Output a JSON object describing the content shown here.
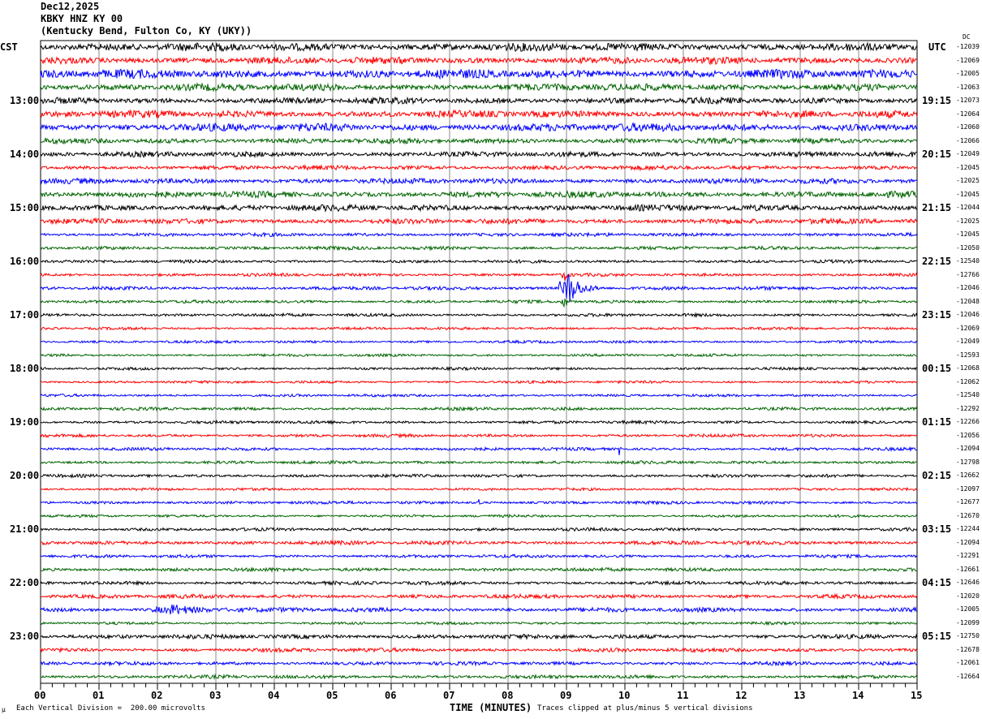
{
  "chart_data": {
    "type": "line",
    "title": {
      "date": "Dec12,2025",
      "station": "KBKY HNZ KY 00",
      "location": "(Kentucky Bend, Fulton Co, KY (UKY))"
    },
    "left_timezone": "CST",
    "right_timezone": "UTC",
    "dc_label": "DC",
    "xlabel": "TIME (MINUTES)",
    "xlim": [
      0,
      15
    ],
    "x_ticks": [
      "00",
      "01",
      "02",
      "03",
      "04",
      "05",
      "06",
      "07",
      "08",
      "09",
      "10",
      "11",
      "12",
      "13",
      "14",
      "15"
    ],
    "scale_note": "Each Vertical Division =  200.00 microvolts",
    "clip_note": "Traces clipped at plus/minus 5 vertical divisions",
    "corner_mark": "µ",
    "trace_colors": [
      "#000000",
      "#ff0000",
      "#0000ff",
      "#006400"
    ],
    "left_labels": [
      {
        "trace": 0,
        "text": "CST"
      },
      {
        "trace": 4,
        "text": "13:00"
      },
      {
        "trace": 8,
        "text": "14:00"
      },
      {
        "trace": 12,
        "text": "15:00"
      },
      {
        "trace": 16,
        "text": "16:00"
      },
      {
        "trace": 20,
        "text": "17:00"
      },
      {
        "trace": 24,
        "text": "18:00"
      },
      {
        "trace": 28,
        "text": "19:00"
      },
      {
        "trace": 32,
        "text": "20:00"
      },
      {
        "trace": 36,
        "text": "21:00"
      },
      {
        "trace": 40,
        "text": "22:00"
      },
      {
        "trace": 44,
        "text": "23:00"
      }
    ],
    "right_labels": [
      {
        "trace": 0,
        "text": "UTC"
      },
      {
        "trace": 4,
        "text": "19:15"
      },
      {
        "trace": 8,
        "text": "20:15"
      },
      {
        "trace": 12,
        "text": "21:15"
      },
      {
        "trace": 16,
        "text": "22:15"
      },
      {
        "trace": 20,
        "text": "23:15"
      },
      {
        "trace": 24,
        "text": "00:15"
      },
      {
        "trace": 28,
        "text": "01:15"
      },
      {
        "trace": 32,
        "text": "02:15"
      },
      {
        "trace": 36,
        "text": "03:15"
      },
      {
        "trace": 40,
        "text": "04:15"
      },
      {
        "trace": 44,
        "text": "05:15"
      }
    ],
    "dc_offsets": [
      "-12039",
      "-12069",
      "-12005",
      "-12063",
      "-12073",
      "-12064",
      "-12060",
      "-12066",
      "-12049",
      "-12045",
      "-12025",
      "-12045",
      "-12044",
      "-12025",
      "-12045",
      "-12050",
      "-12540",
      "-12766",
      "-12046",
      "-12048",
      "-12046",
      "-12069",
      "-12049",
      "-12593",
      "-12068",
      "-12062",
      "-12540",
      "-12292",
      "-12266",
      "-12056",
      "-12094",
      "-12798",
      "-12662",
      "-12097",
      "-12677",
      "-12670",
      "-12244",
      "-12094",
      "-12291",
      "-12661",
      "-12646",
      "-12020",
      "-12005",
      "-12099",
      "-12750",
      "-12678",
      "-12061",
      "-12664"
    ],
    "trace_noise_divisions": [
      0.9,
      0.8,
      1.0,
      0.8,
      0.7,
      0.8,
      0.9,
      0.6,
      0.6,
      0.5,
      0.6,
      0.7,
      0.7,
      0.6,
      0.4,
      0.4,
      0.35,
      0.35,
      0.4,
      0.35,
      0.35,
      0.3,
      0.3,
      0.3,
      0.3,
      0.3,
      0.3,
      0.35,
      0.35,
      0.35,
      0.35,
      0.35,
      0.35,
      0.3,
      0.35,
      0.3,
      0.35,
      0.45,
      0.35,
      0.4,
      0.4,
      0.45,
      0.5,
      0.3,
      0.5,
      0.45,
      0.4,
      0.4
    ],
    "events": [
      {
        "trace": 18,
        "minute": 9.0,
        "amplitude_divisions": 5,
        "duration_minutes": 0.45
      },
      {
        "trace": 17,
        "minute": 8.95,
        "amplitude_divisions": 2,
        "duration_minutes": 0.1
      },
      {
        "trace": 19,
        "minute": 8.95,
        "amplitude_divisions": 2,
        "duration_minutes": 0.15
      },
      {
        "trace": 30,
        "minute": 9.9,
        "amplitude_divisions": 1.5,
        "duration_minutes": 0.05
      },
      {
        "trace": 34,
        "minute": 7.5,
        "amplitude_divisions": 1.5,
        "duration_minutes": 0.05
      },
      {
        "trace": 38,
        "minute": 13.4,
        "amplitude_divisions": 2.5,
        "duration_minutes": 0.03
      },
      {
        "trace": 42,
        "minute": 2.2,
        "amplitude_divisions": 1.2,
        "duration_minutes": 1.0
      }
    ]
  }
}
